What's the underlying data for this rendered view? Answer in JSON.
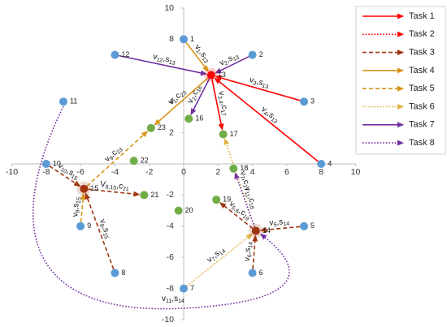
{
  "chart_data": {
    "type": "network",
    "xlim": [
      -10,
      10
    ],
    "ylim": [
      -10,
      10
    ],
    "xticks": [
      -10,
      -8,
      -6,
      -4,
      -2,
      0,
      2,
      4,
      6,
      8,
      10
    ],
    "yticks": [
      -10,
      -8,
      -6,
      -4,
      -2,
      2,
      4,
      8,
      10
    ],
    "series": [
      {
        "name": "Task 1",
        "color": "#ff0000",
        "dash": "solid"
      },
      {
        "name": "Task 2",
        "color": "#ff0000",
        "dash": "dotted"
      },
      {
        "name": "Task 3",
        "color": "#a0350f",
        "dash": "dashed"
      },
      {
        "name": "Task 4",
        "color": "#d9951a",
        "dash": "solid"
      },
      {
        "name": "Task 5",
        "color": "#d9951a",
        "dash": "dashed"
      },
      {
        "name": "Task 6",
        "color": "#e0b040",
        "dash": "dotted"
      },
      {
        "name": "Task 7",
        "color": "#7030a0",
        "dash": "solid"
      },
      {
        "name": "Task 8",
        "color": "#7030a0",
        "dash": "dotted"
      }
    ],
    "nodes": [
      {
        "label": "1",
        "x": 0,
        "y": 8,
        "color": "#5b9bd5"
      },
      {
        "label": "2",
        "x": 4,
        "y": 7,
        "color": "#5b9bd5"
      },
      {
        "label": "3",
        "x": 7,
        "y": 4,
        "color": "#5b9bd5"
      },
      {
        "label": "4",
        "x": 8,
        "y": 0,
        "color": "#5b9bd5"
      },
      {
        "label": "5",
        "x": 7,
        "y": -4,
        "color": "#5b9bd5"
      },
      {
        "label": "6",
        "x": 4,
        "y": -7,
        "color": "#5b9bd5"
      },
      {
        "label": "7",
        "x": 0,
        "y": -8,
        "color": "#5b9bd5"
      },
      {
        "label": "8",
        "x": -4,
        "y": -7,
        "color": "#5b9bd5"
      },
      {
        "label": "9",
        "x": -6,
        "y": -4,
        "color": "#5b9bd5"
      },
      {
        "label": "10",
        "x": -8,
        "y": 0,
        "color": "#5b9bd5"
      },
      {
        "label": "11",
        "x": -7,
        "y": 4,
        "color": "#5b9bd5"
      },
      {
        "label": "12",
        "x": -4,
        "y": 7,
        "color": "#5b9bd5"
      },
      {
        "label": "13",
        "x": 1.6,
        "y": 5.7,
        "color": "#ff0000"
      },
      {
        "label": "14",
        "x": 4.2,
        "y": -4.3,
        "color": "#a0350f"
      },
      {
        "label": "15",
        "x": -5.8,
        "y": -1.6,
        "color": "#a0350f"
      },
      {
        "label": "16",
        "x": 0.3,
        "y": 2.9,
        "color": "#70ad47"
      },
      {
        "label": "17",
        "x": 2.3,
        "y": 1.9,
        "color": "#70ad47"
      },
      {
        "label": "18",
        "x": 2.9,
        "y": -0.3,
        "color": "#70ad47"
      },
      {
        "label": "19",
        "x": 1.9,
        "y": -2.3,
        "color": "#70ad47"
      },
      {
        "label": "20",
        "x": -0.3,
        "y": -3,
        "color": "#70ad47"
      },
      {
        "label": "21",
        "x": -2.3,
        "y": -2,
        "color": "#70ad47"
      },
      {
        "label": "22",
        "x": -2.9,
        "y": 0.2,
        "color": "#70ad47"
      },
      {
        "label": "23",
        "x": -1.9,
        "y": 2.3,
        "color": "#70ad47"
      }
    ],
    "edges": [
      {
        "from": 0,
        "to": 12,
        "task": 3,
        "label": [
          "v",
          "1",
          ",s",
          "13"
        ]
      },
      {
        "from": 1,
        "to": 12,
        "task": 6,
        "label": [
          "v",
          "2",
          ",s",
          "13"
        ]
      },
      {
        "from": 2,
        "to": 12,
        "task": 0,
        "label": [
          "v",
          "3",
          ",s",
          "13"
        ]
      },
      {
        "from": 3,
        "to": 12,
        "task": 0,
        "label": [
          "v",
          "4",
          ",s",
          "13"
        ]
      },
      {
        "from": 11,
        "to": 12,
        "task": 6,
        "label": [
          "v",
          "12",
          ",s",
          "13"
        ]
      },
      {
        "from": 12,
        "to": 15,
        "task": 6,
        "label": [
          "v",
          "2",
          ",c",
          "16"
        ]
      },
      {
        "from": 12,
        "to": 16,
        "task": 0,
        "label": [
          "v",
          "3,4",
          ",c",
          "17"
        ]
      },
      {
        "from": 12,
        "to": 22,
        "task": 3,
        "label": [
          "v",
          "1",
          ",c",
          "23"
        ]
      },
      {
        "from": 14,
        "to": 22,
        "task": 4,
        "label": [
          "v",
          "9",
          ",c",
          "23"
        ]
      },
      {
        "from": 9,
        "to": 14,
        "task": 2,
        "label": [
          "v",
          "10",
          ",s",
          "15"
        ]
      },
      {
        "from": 8,
        "to": 14,
        "task": 4,
        "label": [
          "v",
          "9",
          ",s",
          "15"
        ]
      },
      {
        "from": 7,
        "to": 14,
        "task": 2,
        "label": [
          "v",
          "8",
          ",s",
          "15"
        ]
      },
      {
        "from": 14,
        "to": 20,
        "task": 2,
        "label": [
          "V",
          "8,10",
          ",c",
          "21"
        ]
      },
      {
        "from": 4,
        "to": 13,
        "task": 2,
        "label": [
          "v",
          "5",
          ",s",
          "14"
        ]
      },
      {
        "from": 5,
        "to": 13,
        "task": 2,
        "label": [
          "v",
          "6",
          ",s",
          "14"
        ]
      },
      {
        "from": 6,
        "to": 13,
        "task": 5,
        "label": [
          "v",
          "7",
          ",s",
          "14"
        ]
      },
      {
        "from": 13,
        "to": 16,
        "task": 5,
        "label": [
          "v",
          "7",
          ",c",
          "17"
        ]
      },
      {
        "from": 13,
        "to": 17,
        "task": 7,
        "label": [
          "v",
          "11",
          ",c",
          "18"
        ]
      },
      {
        "from": 13,
        "to": 18,
        "task": 2,
        "label": [
          "v",
          "5,6",
          ",c",
          "19"
        ]
      },
      {
        "from": 10,
        "to": 13,
        "task": 7,
        "curve": true,
        "label": [
          "v",
          "11",
          ",s",
          "14"
        ]
      }
    ]
  }
}
